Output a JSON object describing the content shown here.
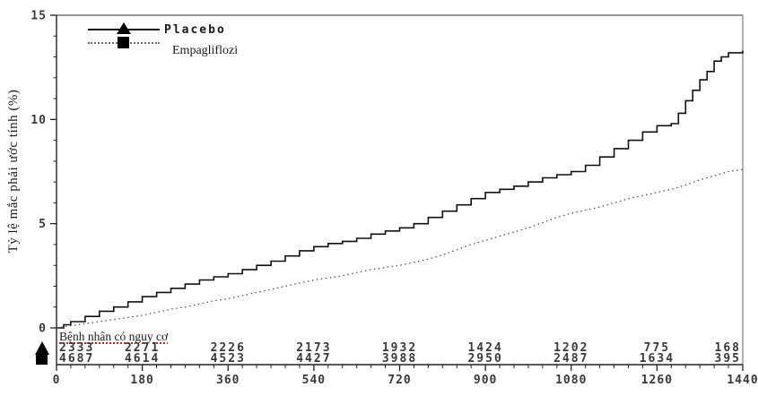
{
  "figure": {
    "background": "#ffffff",
    "curve_color_placebo": "#111111",
    "curve_color_empagliflozin": "#555555",
    "axis_color": "#222222",
    "frame_top_color": "#555555",
    "frame_right_color": "#999999",
    "tick_label_color": "#3a3a3a",
    "risk_underline_color": "#cc2222"
  },
  "chart_data": {
    "type": "line",
    "subtype": "kaplan-meier-cumulative-incidence",
    "title": "",
    "xlabel": "",
    "ylabel": "Tỷ lệ mắc phải ước tính (%)",
    "xlim": [
      0,
      1440
    ],
    "ylim": [
      0,
      15
    ],
    "x_ticks": [
      0,
      180,
      360,
      540,
      720,
      900,
      1080,
      1260,
      1440
    ],
    "y_ticks": [
      0,
      5,
      10,
      15
    ],
    "x_minor_step": 30,
    "y_minor_step": 1,
    "grid": false,
    "legend_position": "top-left",
    "series": [
      {
        "name": "Placebo",
        "marker": "triangle",
        "line_style": "solid",
        "step": true,
        "x": [
          0,
          15,
          30,
          60,
          90,
          120,
          150,
          180,
          210,
          240,
          270,
          300,
          330,
          360,
          390,
          420,
          450,
          480,
          510,
          540,
          570,
          600,
          630,
          660,
          690,
          720,
          750,
          780,
          810,
          840,
          870,
          900,
          930,
          960,
          990,
          1020,
          1050,
          1080,
          1110,
          1140,
          1170,
          1200,
          1230,
          1260,
          1290,
          1305,
          1320,
          1335,
          1350,
          1365,
          1380,
          1395,
          1410,
          1440
        ],
        "values": [
          0,
          0.15,
          0.3,
          0.55,
          0.8,
          1.0,
          1.25,
          1.5,
          1.7,
          1.9,
          2.1,
          2.3,
          2.45,
          2.6,
          2.8,
          3.0,
          3.2,
          3.45,
          3.7,
          3.9,
          4.05,
          4.15,
          4.3,
          4.5,
          4.65,
          4.8,
          5.0,
          5.3,
          5.6,
          5.9,
          6.2,
          6.5,
          6.65,
          6.8,
          7.0,
          7.2,
          7.35,
          7.5,
          7.8,
          8.2,
          8.6,
          9.0,
          9.4,
          9.7,
          9.8,
          10.3,
          10.9,
          11.4,
          11.9,
          12.3,
          12.8,
          13.0,
          13.2,
          13.3
        ]
      },
      {
        "name": "Empagliflozi",
        "marker": "square",
        "line_style": "dotted",
        "step": false,
        "x": [
          0,
          30,
          60,
          90,
          120,
          150,
          180,
          210,
          240,
          270,
          300,
          330,
          360,
          390,
          420,
          450,
          480,
          510,
          540,
          570,
          600,
          630,
          660,
          690,
          720,
          750,
          780,
          810,
          840,
          870,
          900,
          930,
          960,
          990,
          1020,
          1050,
          1080,
          1110,
          1140,
          1170,
          1200,
          1230,
          1260,
          1290,
          1320,
          1350,
          1380,
          1410,
          1440
        ],
        "values": [
          0,
          0.1,
          0.2,
          0.3,
          0.4,
          0.5,
          0.6,
          0.75,
          0.9,
          1.0,
          1.15,
          1.3,
          1.4,
          1.55,
          1.7,
          1.85,
          2.0,
          2.15,
          2.3,
          2.4,
          2.5,
          2.65,
          2.8,
          2.9,
          3.0,
          3.15,
          3.3,
          3.5,
          3.75,
          4.0,
          4.2,
          4.4,
          4.6,
          4.8,
          5.05,
          5.3,
          5.5,
          5.65,
          5.8,
          6.0,
          6.2,
          6.35,
          6.5,
          6.65,
          6.85,
          7.1,
          7.3,
          7.5,
          7.6
        ]
      }
    ],
    "risk_table": {
      "header": "Bệnh nhân có nguy cơ",
      "times": [
        0,
        180,
        360,
        540,
        720,
        900,
        1080,
        1260,
        1440
      ],
      "rows": [
        {
          "series": "Placebo",
          "marker": "triangle",
          "counts": [
            "2333",
            "2271",
            "2226",
            "2173",
            "1932",
            "1424",
            "1202",
            "775",
            "168"
          ]
        },
        {
          "series": "Empagliflozi",
          "marker": "square",
          "counts": [
            "4687",
            "4614",
            "4523",
            "4427",
            "3988",
            "2950",
            "2487",
            "1634",
            "395"
          ]
        }
      ]
    }
  }
}
